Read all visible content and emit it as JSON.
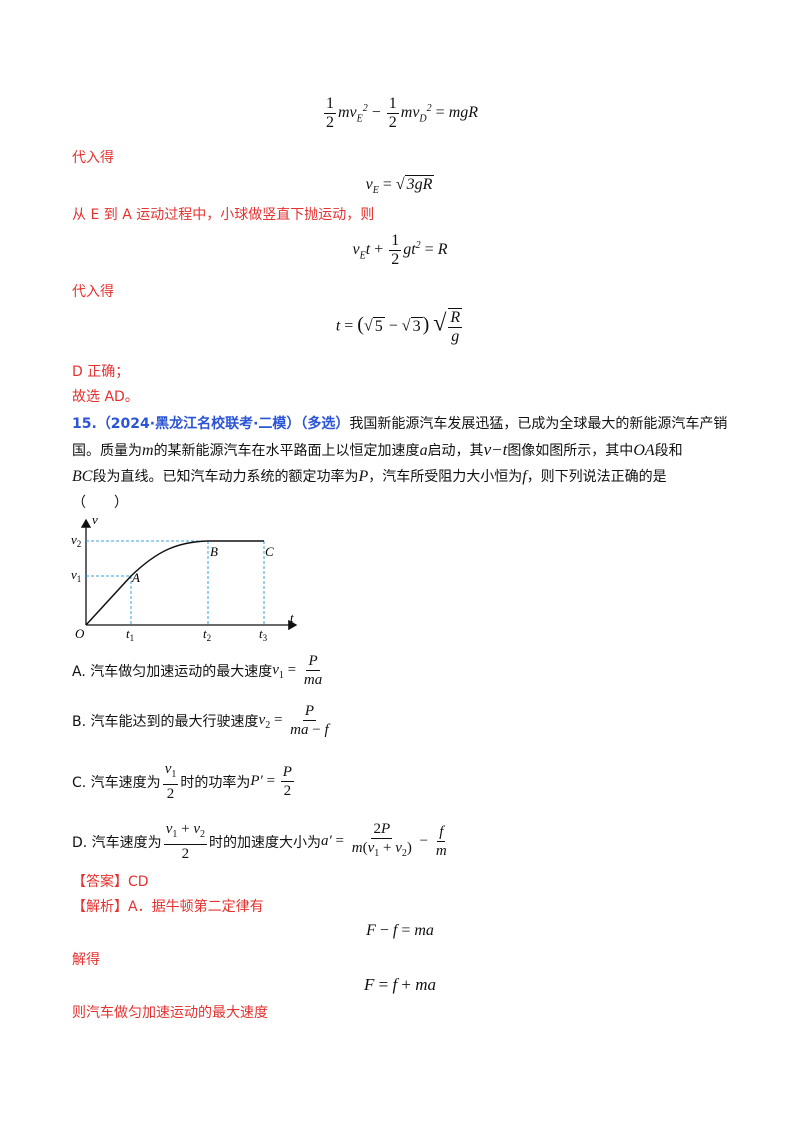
{
  "solution_top": {
    "label_substitute_1": "代入得",
    "text_e_to_a": "从 E 到 A 运动过程中，小球做竖直下抛运动，则",
    "label_substitute_2": "代入得",
    "text_d_correct": "D 正确；",
    "text_choose": "故选 AD。"
  },
  "question": {
    "number": "15.",
    "source": "（2024·黑龙江名校联考·二模）",
    "type": "（多选）",
    "text_1": "我国新能源汽车发展迅猛，已成为全球最大的新能源汽车产销",
    "text_2a": "国。质量为",
    "text_2b": "m",
    "text_2c": "的某新能源汽车在水平路面上以恒定加速度",
    "text_2d": "a",
    "text_2e": "启动，其",
    "text_2f": "v−t",
    "text_2g": "图像如图所示，其中",
    "text_2h": "OA",
    "text_2i": "段和",
    "text_3a": "BC",
    "text_3b": "段为直线。已知汽车动力系统的额定功率为",
    "text_3c": "P",
    "text_3d": "，汽车所受阻力大小恒为",
    "text_3e": "f",
    "text_3f": "，则下列说法正确的是",
    "blank": "（　　）"
  },
  "graph_labels": {
    "v_axis": "v",
    "t_axis": "t",
    "v1": "v",
    "v2": "v",
    "sub1": "1",
    "sub2": "2",
    "sub3": "3",
    "origin": "O",
    "t1": "t",
    "t2": "t",
    "t3": "t",
    "A": "A",
    "B": "B",
    "C": "C"
  },
  "options": {
    "A_prefix": "A. 汽车做匀加速运动的最大速度",
    "B_prefix": "B. 汽车能达到的最大行驶速度",
    "C_prefix": "C. 汽车速度为",
    "C_mid": "时的功率为",
    "D_prefix": "D. 汽车速度为",
    "D_mid": "时的加速度大小为"
  },
  "answer": {
    "label": "【答案】CD",
    "analysis": "【解析】A．据牛顿第二定律有",
    "solve": "解得",
    "final": "则汽车做匀加速运动的最大速度"
  }
}
